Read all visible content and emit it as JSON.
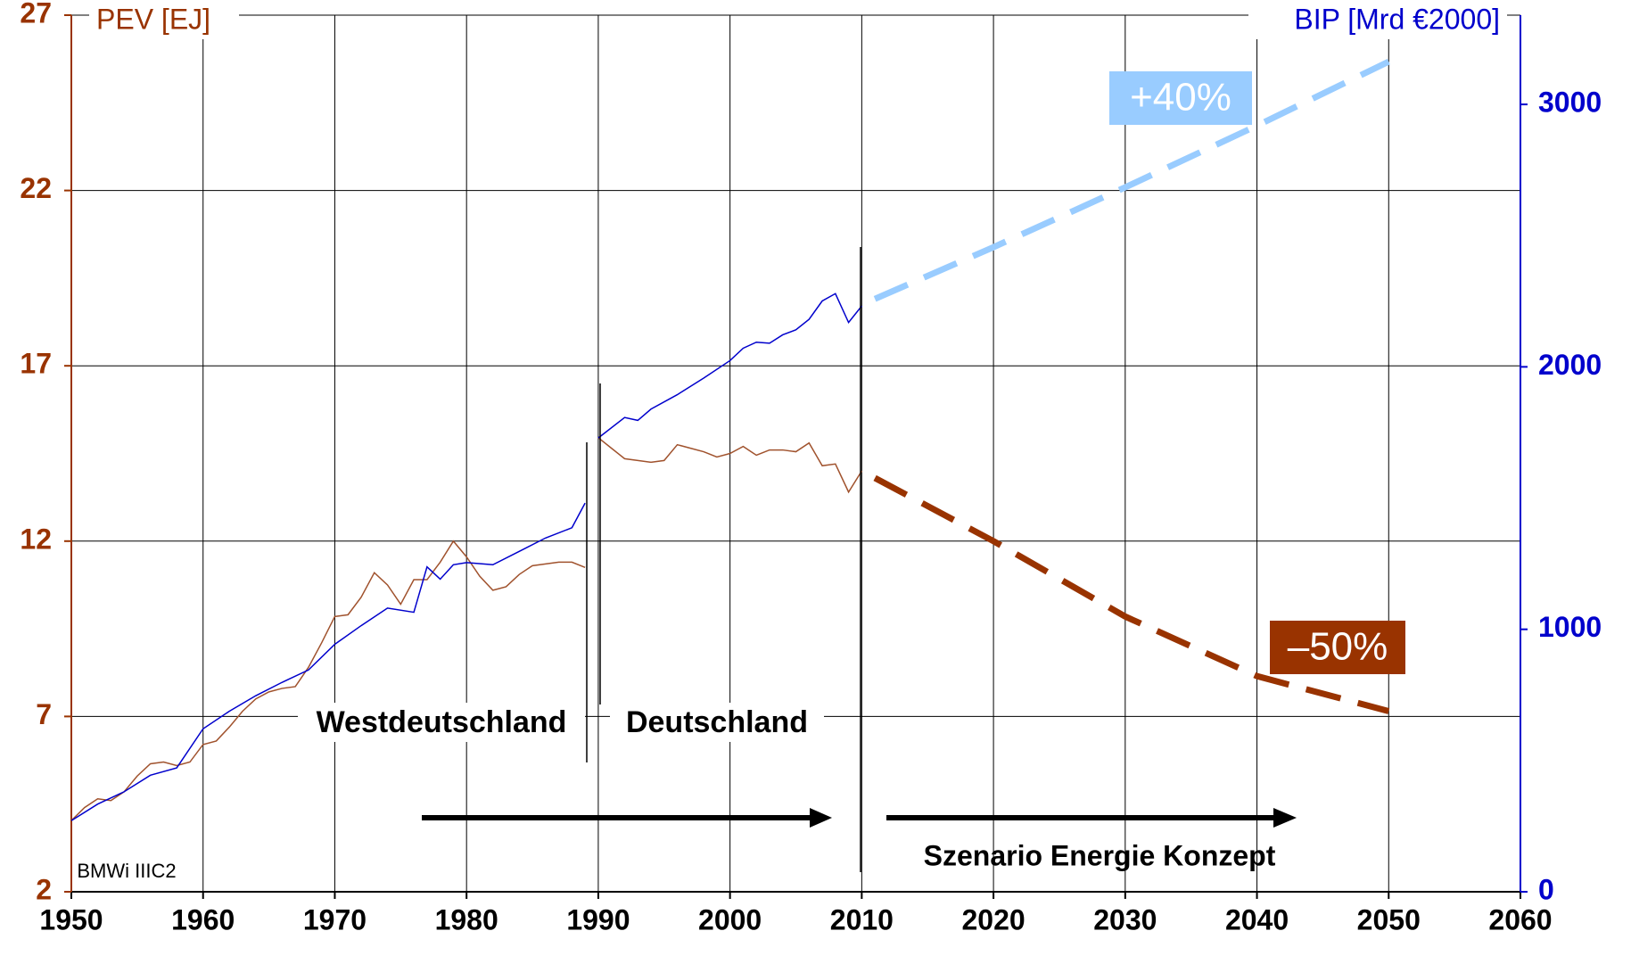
{
  "chart_data": {
    "type": "line",
    "ylabel": "PEV [EJ]",
    "y2label": "BIP [Mrd €2000]",
    "xlim": [
      1950,
      2060
    ],
    "xticks": [
      1950,
      1960,
      1970,
      1980,
      1990,
      2000,
      2010,
      2020,
      2030,
      2040,
      2050,
      2060
    ],
    "ylim": [
      2,
      27
    ],
    "yticks": [
      2,
      7,
      12,
      17,
      22,
      27
    ],
    "y2lim": [
      0,
      3340
    ],
    "y2ticks": [
      0,
      1000,
      2000,
      3000
    ],
    "grid": true,
    "series": [
      {
        "color": "#a0522d",
        "axis": "y",
        "dashed": false,
        "x": [
          1950,
          1951,
          1952,
          1953,
          1954,
          1955,
          1956,
          1957,
          1958,
          1959,
          1960,
          1961,
          1962,
          1963,
          1964,
          1965,
          1966,
          1967,
          1968,
          1969,
          1970,
          1971,
          1972,
          1973,
          1974,
          1975,
          1976,
          1977,
          1978,
          1979,
          1980,
          1981,
          1982,
          1983,
          1984,
          1985,
          1986,
          1987,
          1988,
          1989
        ],
        "values": [
          4.03,
          4.4,
          4.65,
          4.6,
          4.85,
          5.3,
          5.65,
          5.7,
          5.6,
          5.7,
          6.2,
          6.3,
          6.7,
          7.15,
          7.5,
          7.7,
          7.8,
          7.85,
          8.4,
          9.1,
          9.85,
          9.9,
          10.4,
          11.1,
          10.75,
          10.2,
          10.9,
          10.9,
          11.4,
          12.0,
          11.55,
          11.0,
          10.6,
          10.7,
          11.05,
          11.3,
          11.35,
          11.4,
          11.4,
          11.25
        ]
      },
      {
        "color": "#a0522d",
        "axis": "y",
        "dashed": false,
        "x": [
          1990,
          1991,
          1992,
          1993,
          1994,
          1995,
          1996,
          1997,
          1998,
          1999,
          2000,
          2001,
          2002,
          2003,
          2004,
          2005,
          2006,
          2007,
          2008,
          2009,
          2010
        ],
        "values": [
          14.95,
          14.65,
          14.35,
          14.3,
          14.25,
          14.3,
          14.75,
          14.65,
          14.55,
          14.4,
          14.5,
          14.7,
          14.45,
          14.6,
          14.6,
          14.55,
          14.8,
          14.15,
          14.2,
          13.4,
          14.0
        ]
      },
      {
        "color": "#993300",
        "axis": "y",
        "dashed": true,
        "x": [
          2011,
          2020,
          2030,
          2040,
          2050
        ],
        "values": [
          13.8,
          12.0,
          9.85,
          8.15,
          7.15
        ]
      },
      {
        "color": "#0000cc",
        "axis": "y2",
        "dashed": false,
        "x": [
          1950,
          1952,
          1954,
          1956,
          1958,
          1960,
          1962,
          1964,
          1966,
          1968,
          1970,
          1972,
          1974,
          1976,
          1977,
          1978,
          1979,
          1980,
          1982,
          1984,
          1986,
          1988,
          1989
        ],
        "values": [
          271,
          334,
          381,
          444,
          472,
          621,
          688,
          747,
          798,
          845,
          943,
          1014,
          1081,
          1065,
          1238,
          1191,
          1246,
          1254,
          1246,
          1297,
          1348,
          1387,
          1481
        ]
      },
      {
        "color": "#0000cc",
        "axis": "y2",
        "dashed": false,
        "x": [
          1990,
          1992,
          1993,
          1994,
          1996,
          1998,
          2000,
          2001,
          2002,
          2003,
          2004,
          2005,
          2006,
          2007,
          2008,
          2009,
          2010
        ],
        "values": [
          1729,
          1807,
          1796,
          1839,
          1894,
          1957,
          2024,
          2071,
          2094,
          2090,
          2122,
          2141,
          2181,
          2251,
          2279,
          2169,
          2232
        ]
      },
      {
        "color": "#99ccff",
        "axis": "y2",
        "dashed": true,
        "x": [
          2011,
          2020,
          2030,
          2040,
          2050
        ],
        "values": [
          2259,
          2456,
          2684,
          2919,
          3163
        ]
      }
    ],
    "annotations": [
      "+40%",
      "–50%",
      "Westdeutschland",
      "Deutschland",
      "Szenario Energie Konzept",
      "BMWi IIIC2"
    ]
  }
}
